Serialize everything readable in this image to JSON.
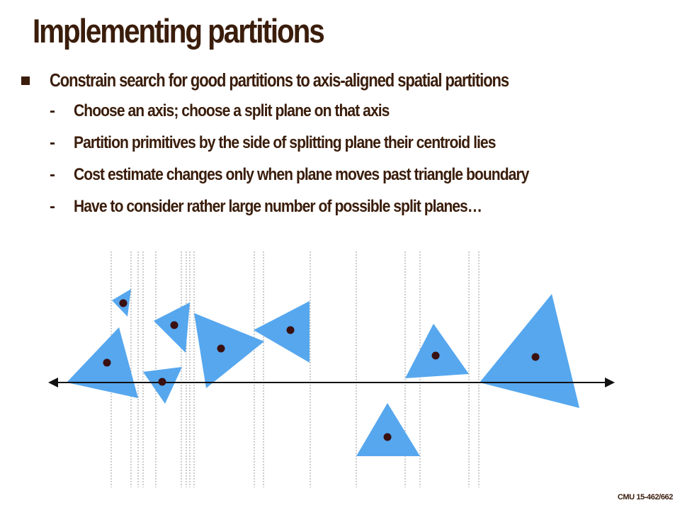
{
  "slide": {
    "title": "Implementing partitions",
    "bullet": "Constrain search for good partitions to axis-aligned spatial partitions",
    "sub_bullets": [
      "Choose an axis; choose a split plane on that axis",
      "Partition primitives by the side of splitting plane their centroid lies",
      "Cost estimate changes only when plane moves past triangle boundary",
      "Have to consider rather large number of possible split planes…"
    ],
    "footer": "CMU 15-462/662"
  },
  "diagram": {
    "colors": {
      "triangle_fill": "#56a7ee",
      "centroid": "#3a1010",
      "axis": "#111111",
      "split_line": "#9a9a9a"
    }
  }
}
